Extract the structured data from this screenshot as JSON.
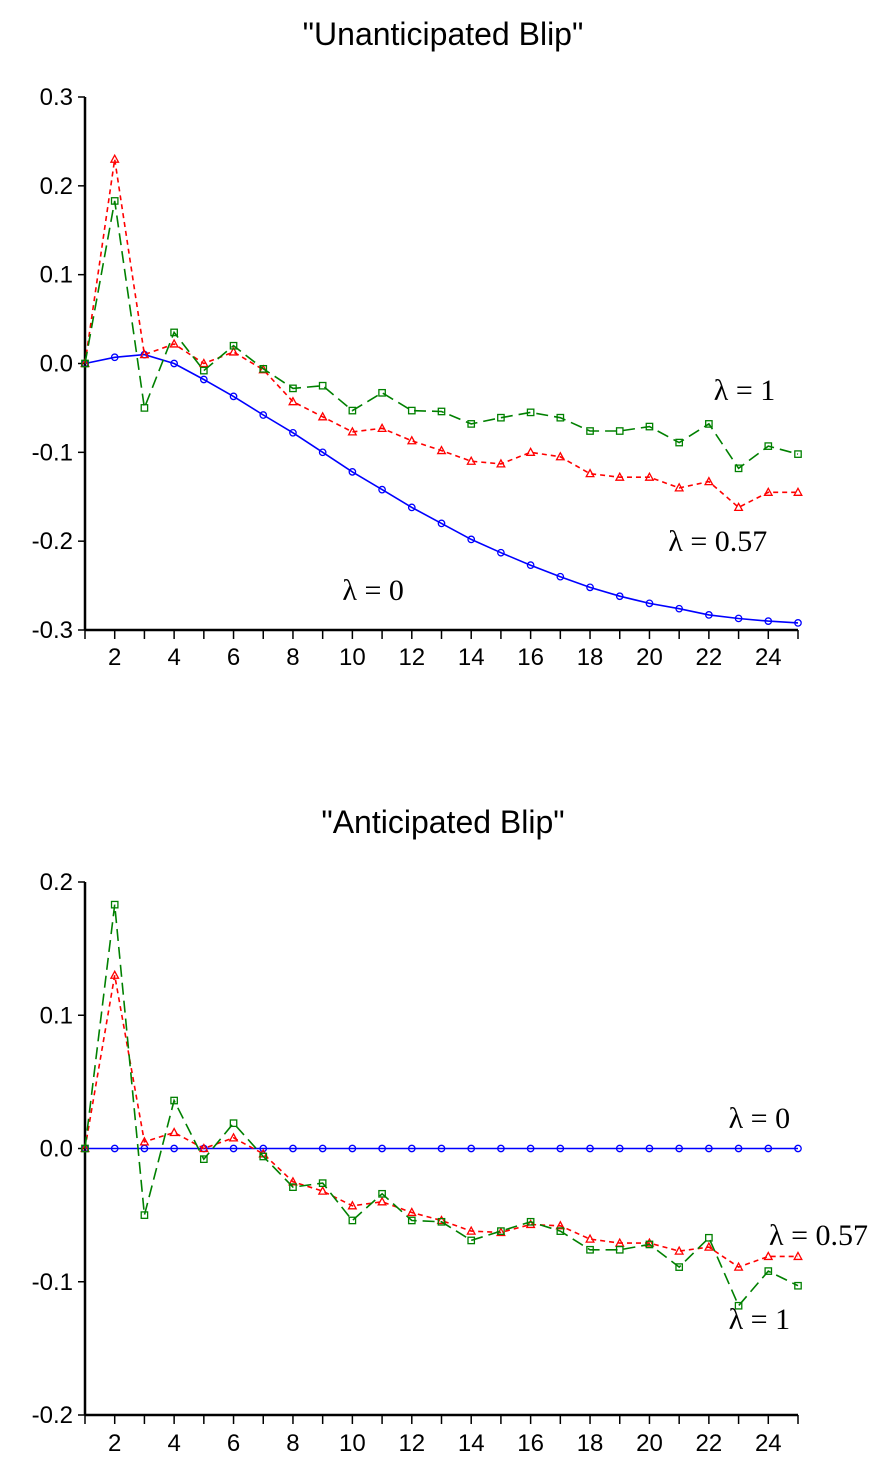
{
  "chart_data": [
    {
      "type": "line",
      "title": "\"Unanticipated Blip\"",
      "x": [
        1,
        2,
        3,
        4,
        5,
        6,
        7,
        8,
        9,
        10,
        11,
        12,
        13,
        14,
        15,
        16,
        17,
        18,
        19,
        20,
        21,
        22,
        23,
        24,
        25
      ],
      "xticks": [
        2,
        4,
        6,
        8,
        10,
        12,
        14,
        16,
        18,
        20,
        22,
        24
      ],
      "ylim": [
        -0.3,
        0.3
      ],
      "yticks": [
        0.3,
        0.2,
        0.1,
        0.0,
        -0.1,
        -0.2,
        -0.3
      ],
      "ytick_labels": [
        "0.3",
        "0.2",
        "0.1",
        "0.0",
        "-0.1",
        "-0.2",
        "-0.3"
      ],
      "series": [
        {
          "color": "#0000ff",
          "marker": "circle",
          "dash": "solid",
          "values": [
            0.0,
            0.007,
            0.01,
            0.0,
            -0.018,
            -0.037,
            -0.058,
            -0.078,
            -0.1,
            -0.122,
            -0.142,
            -0.162,
            -0.18,
            -0.198,
            -0.213,
            -0.227,
            -0.24,
            -0.252,
            -0.262,
            -0.27,
            -0.276,
            -0.283,
            -0.287,
            -0.29,
            -0.292
          ]
        },
        {
          "color": "#ff0000",
          "marker": "triangle",
          "dash": "short",
          "values": [
            0.0,
            0.23,
            0.01,
            0.022,
            0.0,
            0.013,
            -0.007,
            -0.043,
            -0.06,
            -0.077,
            -0.073,
            -0.087,
            -0.098,
            -0.11,
            -0.113,
            -0.1,
            -0.105,
            -0.124,
            -0.128,
            -0.128,
            -0.14,
            -0.133,
            -0.162,
            -0.145,
            -0.145
          ]
        },
        {
          "color": "#008000",
          "marker": "square",
          "dash": "long",
          "values": [
            0.0,
            0.183,
            -0.05,
            0.035,
            -0.008,
            0.02,
            -0.006,
            -0.028,
            -0.025,
            -0.053,
            -0.033,
            -0.053,
            -0.054,
            -0.068,
            -0.061,
            -0.055,
            -0.061,
            -0.076,
            -0.076,
            -0.071,
            -0.089,
            -0.068,
            -0.118,
            -0.093,
            -0.102
          ]
        }
      ],
      "annotations": [
        {
          "text": "λ = 1",
          "x": 23.2,
          "y": -0.03
        },
        {
          "text": "λ = 0.57",
          "x": 22.3,
          "y": -0.2
        },
        {
          "text": "λ = 0",
          "x": 10.7,
          "y": -0.255
        }
      ]
    },
    {
      "type": "line",
      "title": "\"Anticipated Blip\"",
      "x": [
        1,
        2,
        3,
        4,
        5,
        6,
        7,
        8,
        9,
        10,
        11,
        12,
        13,
        14,
        15,
        16,
        17,
        18,
        19,
        20,
        21,
        22,
        23,
        24,
        25
      ],
      "xticks": [
        2,
        4,
        6,
        8,
        10,
        12,
        14,
        16,
        18,
        20,
        22,
        24
      ],
      "ylim": [
        -0.2,
        0.2
      ],
      "yticks": [
        0.2,
        0.1,
        0.0,
        -0.1,
        -0.2
      ],
      "ytick_labels": [
        "0.2",
        "0.1",
        "0.0",
        "-0.1",
        "-0.2"
      ],
      "series": [
        {
          "color": "#0000ff",
          "marker": "circle",
          "dash": "solid",
          "values": [
            0,
            0,
            0,
            0,
            0,
            0,
            0,
            0,
            0,
            0,
            0,
            0,
            0,
            0,
            0,
            0,
            0,
            0,
            0,
            0,
            0,
            0,
            0,
            0,
            0
          ]
        },
        {
          "color": "#ff0000",
          "marker": "triangle",
          "dash": "short",
          "values": [
            0.0,
            0.13,
            0.005,
            0.012,
            0.0,
            0.008,
            -0.004,
            -0.025,
            -0.032,
            -0.043,
            -0.04,
            -0.048,
            -0.054,
            -0.062,
            -0.063,
            -0.057,
            -0.058,
            -0.068,
            -0.071,
            -0.071,
            -0.077,
            -0.074,
            -0.089,
            -0.081,
            -0.081
          ]
        },
        {
          "color": "#008000",
          "marker": "square",
          "dash": "long",
          "values": [
            0.0,
            0.183,
            -0.05,
            0.036,
            -0.008,
            0.019,
            -0.006,
            -0.029,
            -0.026,
            -0.054,
            -0.034,
            -0.054,
            -0.055,
            -0.069,
            -0.062,
            -0.055,
            -0.062,
            -0.076,
            -0.076,
            -0.072,
            -0.089,
            -0.067,
            -0.118,
            -0.092,
            -0.103
          ]
        }
      ],
      "annotations": [
        {
          "text": "λ = 0",
          "x": 23.7,
          "y": 0.023
        },
        {
          "text": "λ = 0.57",
          "x": 25.9,
          "y": -0.065
        },
        {
          "text": "λ = 1",
          "x": 23.7,
          "y": -0.128
        }
      ]
    }
  ]
}
